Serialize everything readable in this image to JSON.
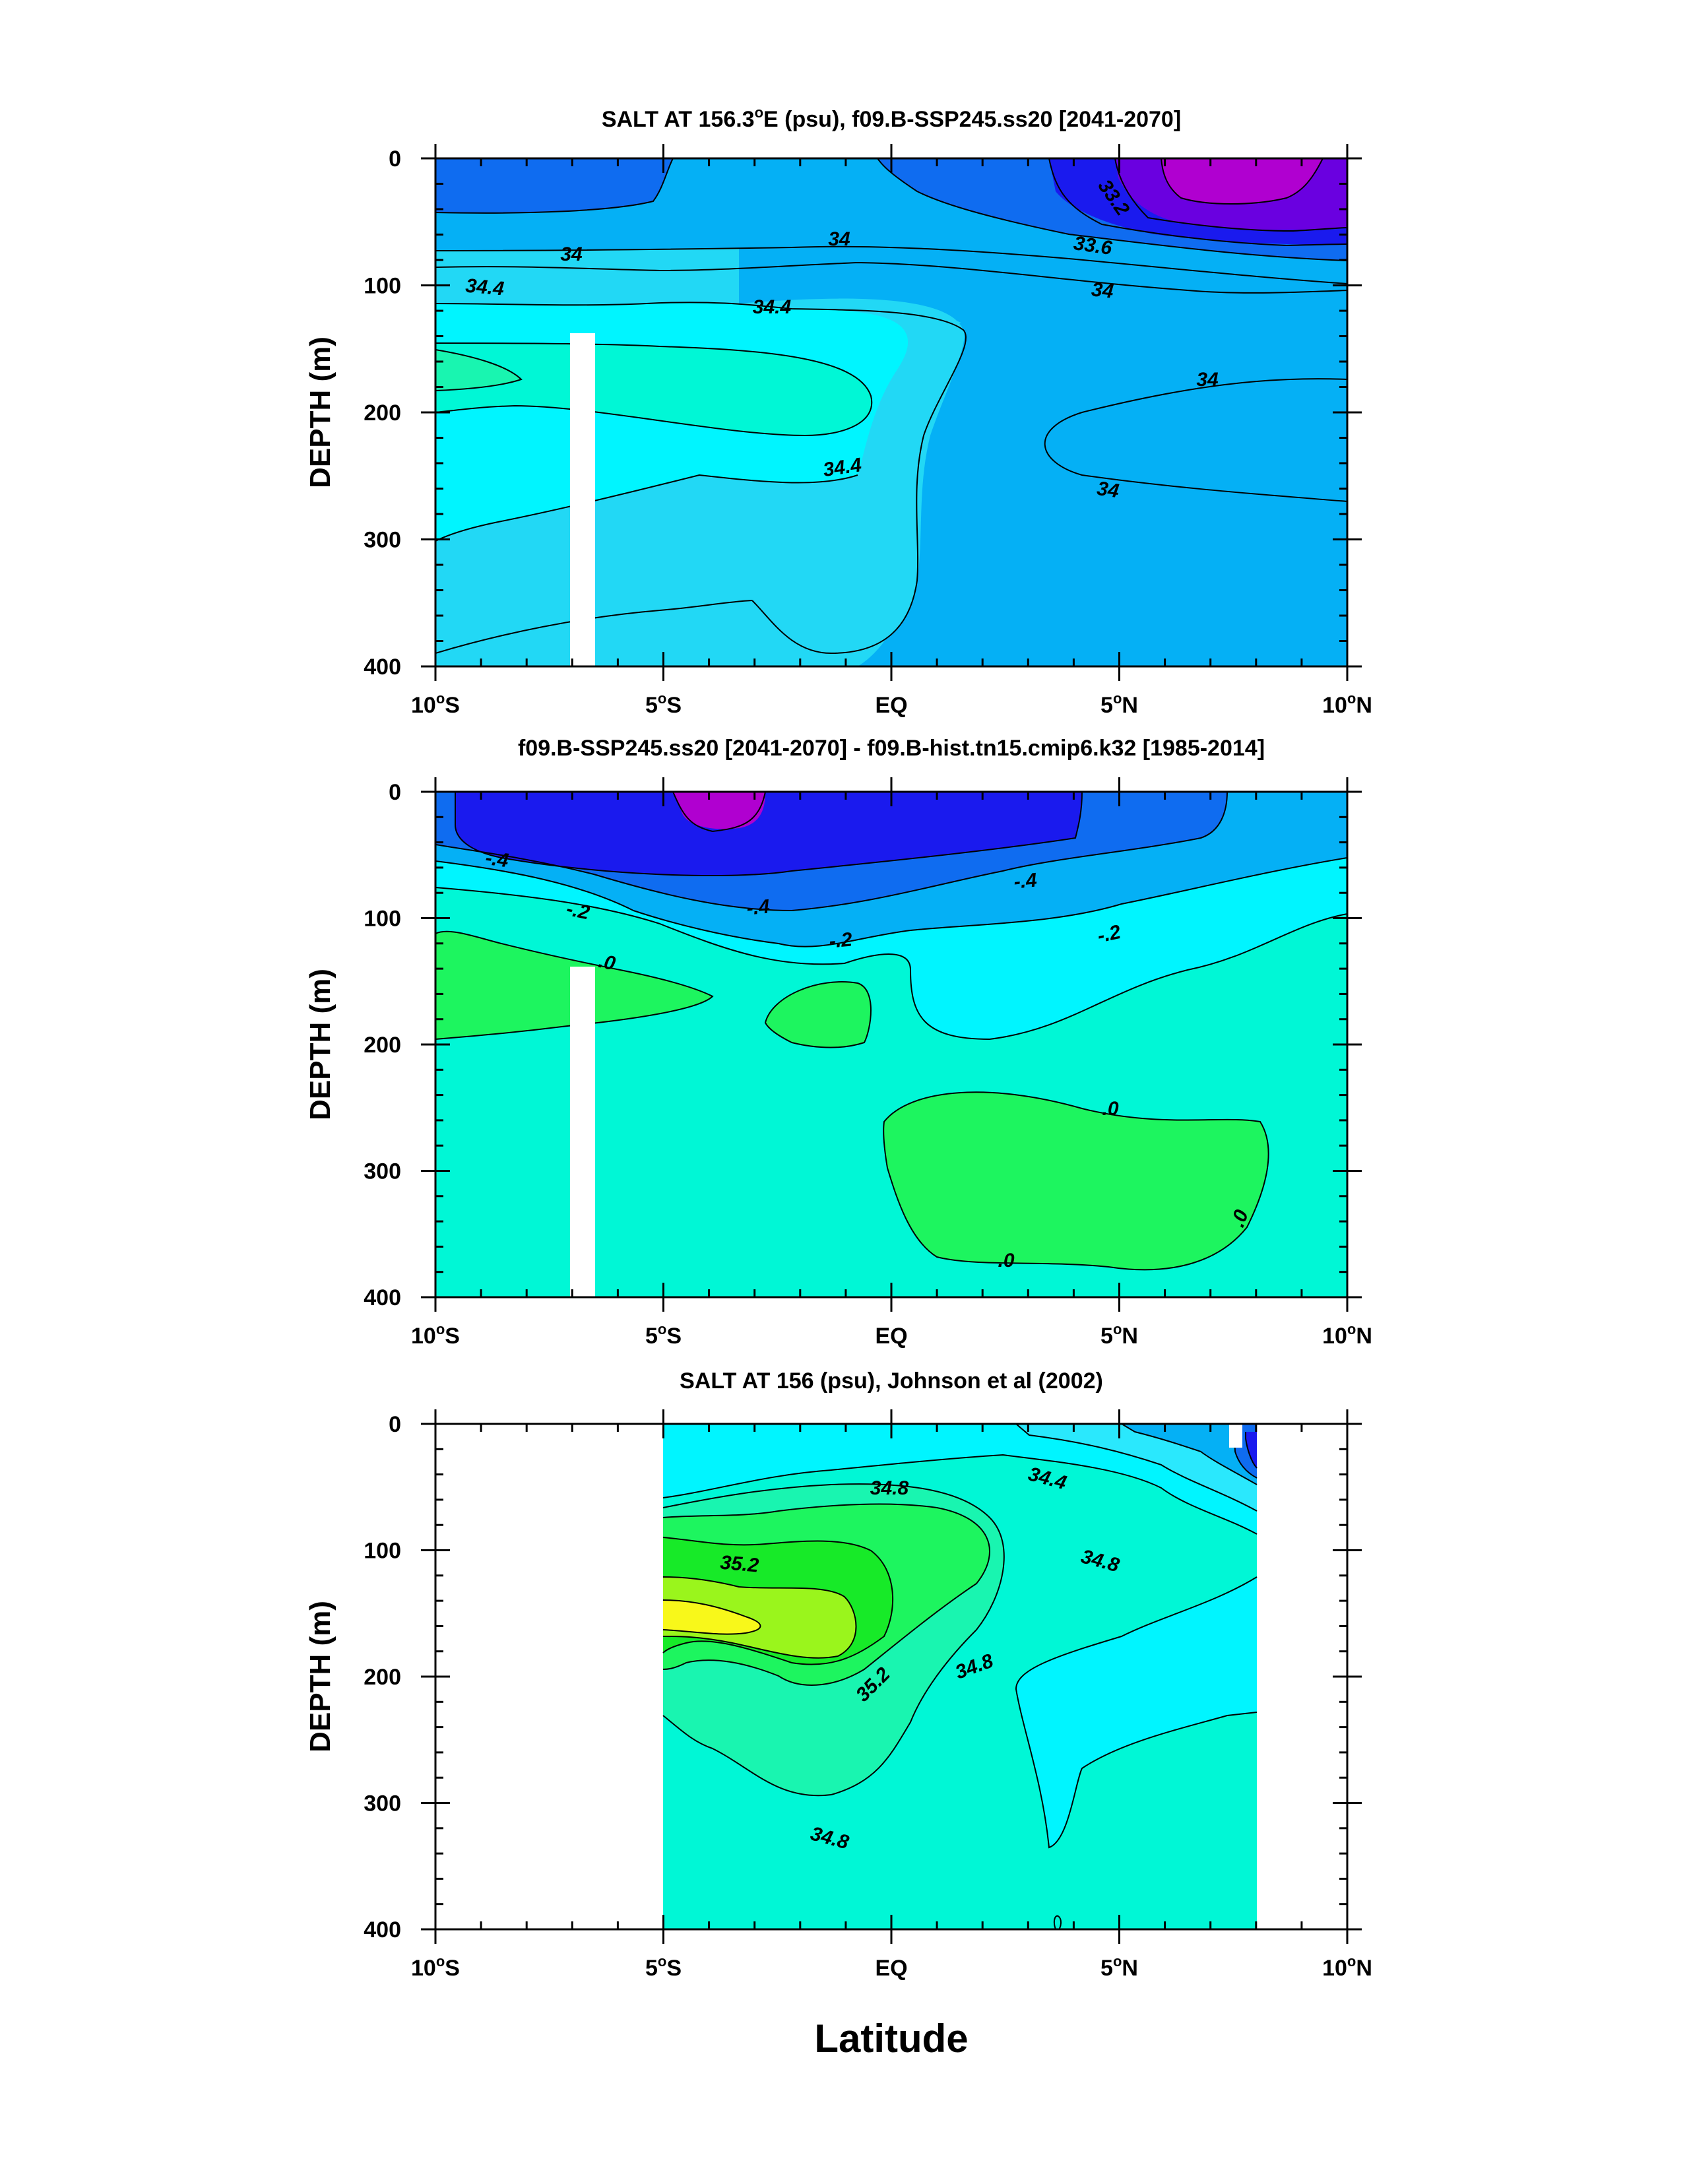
{
  "figure": {
    "xlabel": "Latitude"
  },
  "chart_data": [
    {
      "type": "contour",
      "title": "SALT AT 156.3°E (psu), f09.B-SSP245.ss20 [2041-2070]",
      "title_parts": [
        "SALT AT 156.3",
        "o",
        "E (psu), f09.B-SSP245.ss20 [2041-2070]"
      ],
      "xlabel": "Latitude",
      "ylabel": "DEPTH (m)",
      "xlim": [
        -10,
        10
      ],
      "ylim": [
        0,
        400
      ],
      "y_inverted": true,
      "x_ticks": [
        "10°S",
        "5°S",
        "EQ",
        "5°N",
        "10°N"
      ],
      "y_ticks": [
        "0",
        "100",
        "200",
        "300",
        "400"
      ],
      "contour_labels": [
        "33.2",
        "33.6",
        "34",
        "34",
        "34",
        "34",
        "34",
        "34.4",
        "34.4",
        "34.4"
      ]
    },
    {
      "type": "contour",
      "title": "f09.B-SSP245.ss20 [2041-2070] - f09.B-hist.tn15.cmip6.k32 [1985-2014]",
      "xlabel": "Latitude",
      "ylabel": "DEPTH (m)",
      "xlim": [
        -10,
        10
      ],
      "ylim": [
        0,
        400
      ],
      "y_inverted": true,
      "x_ticks": [
        "10°S",
        "5°S",
        "EQ",
        "5°N",
        "10°N"
      ],
      "y_ticks": [
        "0",
        "100",
        "200",
        "300",
        "400"
      ],
      "contour_labels": [
        "-.4",
        "-.4",
        "-.4",
        "-.2",
        "-.2",
        "-.2",
        ".0",
        ".0",
        ".0",
        ".0"
      ]
    },
    {
      "type": "contour",
      "title": "SALT AT 156 (psu), Johnson et al (2002)",
      "xlabel": "Latitude",
      "ylabel": "DEPTH (m)",
      "xlim": [
        -10,
        10
      ],
      "ylim": [
        0,
        400
      ],
      "y_inverted": true,
      "x_ticks": [
        "10°S",
        "5°S",
        "EQ",
        "5°N",
        "10°N"
      ],
      "y_ticks": [
        "0",
        "100",
        "200",
        "300",
        "400"
      ],
      "data_extent_lat": [
        -5,
        8
      ],
      "contour_labels": [
        "34.4",
        "34.8",
        "34.8",
        "34.8",
        "34.8",
        "35.2",
        "35.2"
      ]
    }
  ],
  "colors": {
    "deep_purple": "#b000d0",
    "violet": "#6a00e0",
    "dark_blue": "#1a1aee",
    "blue": "#0f6cf0",
    "sky": "#05b0f5",
    "light_sky": "#22d8f5",
    "cyan": "#2ae8fd",
    "aqua": "#00f5ff",
    "turquoise": "#00f7d6",
    "sea": "#19f5b0",
    "green": "#1df55f",
    "bright_green": "#17ea28",
    "lime": "#9af51c",
    "yellow": "#f8f81a"
  }
}
